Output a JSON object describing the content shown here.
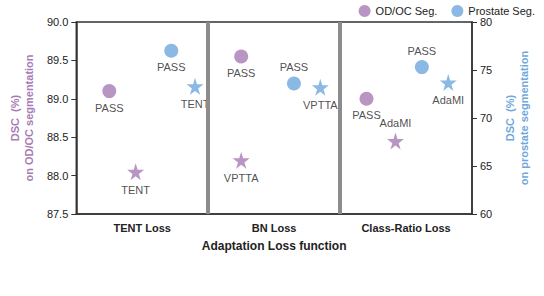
{
  "chart_data": {
    "type": "scatter",
    "x_label": "Adaptation Loss function",
    "categories": [
      "TENT Loss",
      "BN Loss",
      "Class-Ratio Loss"
    ],
    "y_label": "DSC  (%)",
    "y_sublabel": "on OD/OC segmentation",
    "y2_label": "DSC  (%)",
    "y2_sublabel": "on prostate segmentation",
    "ylim": [
      87.5,
      90.0
    ],
    "yticks": [
      87.5,
      {
        "value": 88,
        "label": "88.0"
      },
      88.5,
      {
        "value": 89,
        "label": "89.0"
      },
      89.5,
      {
        "value": 90,
        "label": "90.0"
      }
    ],
    "y2lim": [
      60,
      80
    ],
    "y2ticks": [
      60,
      65,
      70,
      75,
      80
    ],
    "legend": "top-right",
    "grid": false,
    "series": [
      {
        "name": "OD/OC Seg.",
        "color": "#a77bb5",
        "axis": "y",
        "groups": [
          {
            "marker": "circle",
            "labels": [
              "PASS",
              "PASS",
              "PASS"
            ],
            "values": [
              89.1,
              89.55,
              89.0
            ]
          },
          {
            "marker": "star",
            "labels": [
              "TENT",
              "VPTTA",
              "AdaMI"
            ],
            "values": [
              88.05,
              88.2,
              88.45
            ]
          }
        ]
      },
      {
        "name": "Prostate Seg.",
        "color": "#6fa8dc",
        "axis": "y2",
        "groups": [
          {
            "marker": "circle",
            "labels": [
              "PASS",
              "PASS",
              "PASS"
            ],
            "values": [
              77.0,
              73.6,
              75.3
            ]
          },
          {
            "marker": "star",
            "labels": [
              "TENT",
              "VPTTA",
              "AdaMI"
            ],
            "values": [
              73.3,
              73.2,
              73.7
            ]
          }
        ]
      }
    ]
  }
}
